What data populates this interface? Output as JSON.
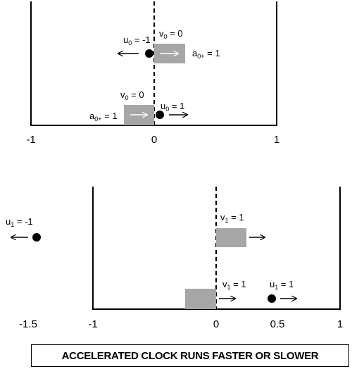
{
  "colors": {
    "block_fill": "#a6a6a6",
    "line": "#000000",
    "background": "#ffffff"
  },
  "top_panel": {
    "ticks": [
      "-1",
      "0",
      "1"
    ],
    "upper_pair": {
      "particle_u_label": "u",
      "particle_u_sub": "0",
      "particle_u_value": " = -1",
      "block_v_label": "v",
      "block_v_sub": "0",
      "block_v_value": " = 0",
      "block_a_label": "a",
      "block_a_sub": "0+",
      "block_a_value": " = 1"
    },
    "lower_pair": {
      "block_v_label": "v",
      "block_v_sub": "0",
      "block_v_value": " = 0",
      "block_a_label": "a",
      "block_a_sub": "0+",
      "block_a_value": " = 1",
      "particle_u_label": "u",
      "particle_u_sub": "0",
      "particle_u_value": " = 1"
    }
  },
  "bottom_panel": {
    "ticks": [
      "-1.5",
      "-1",
      "0",
      "0.5",
      "1"
    ],
    "left_particle": {
      "u_label": "u",
      "u_sub": "1",
      "u_value": " = -1"
    },
    "upper_block": {
      "v_label": "v",
      "v_sub": "1",
      "v_value": " = 1"
    },
    "lower_block": {
      "v_label": "v",
      "v_sub": "1",
      "v_value": " = 1"
    },
    "right_particle": {
      "u_label": "u",
      "u_sub": "1",
      "u_value": " = 1"
    }
  },
  "caption": "ACCELERATED CLOCK RUNS FASTER OR SLOWER"
}
